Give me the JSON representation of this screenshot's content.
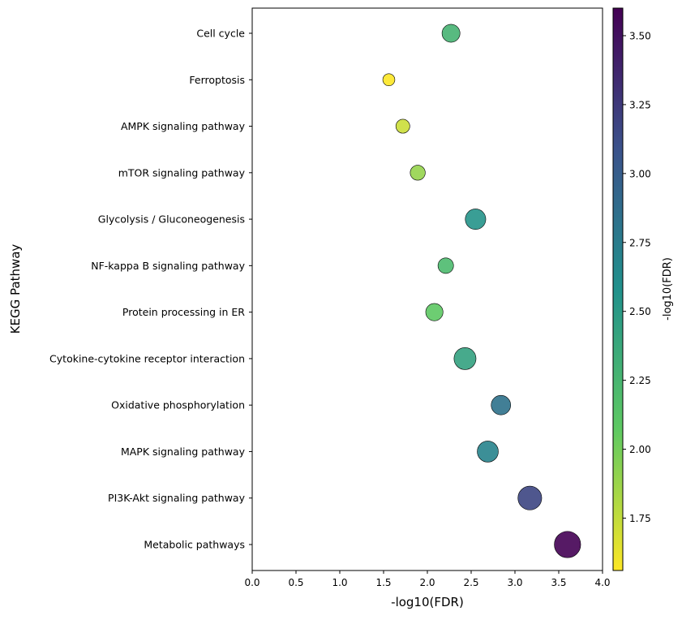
{
  "chart_data": {
    "type": "scatter",
    "title": "",
    "xlabel": "-log10(FDR)",
    "ylabel": "KEGG Pathway",
    "xlim": [
      0,
      4.0
    ],
    "xticks": [
      "0.0",
      "0.5",
      "1.0",
      "1.5",
      "2.0",
      "2.5",
      "3.0",
      "3.5",
      "4.0"
    ],
    "grid": false,
    "colormap": "viridis_r",
    "colorbar": {
      "label": "-log10(FDR)",
      "range": [
        1.56,
        3.6
      ],
      "ticks": [
        "1.75",
        "2.00",
        "2.25",
        "2.50",
        "2.75",
        "3.00",
        "3.25",
        "3.50"
      ]
    },
    "categories": [
      "Cell cycle",
      "Ferroptosis",
      "AMPK signaling pathway",
      "mTOR signaling pathway",
      "Glycolysis / Gluconeogenesis",
      "NF-kappa B signaling pathway",
      "Protein processing in ER",
      "Cytokine-cytokine receptor interaction",
      "Oxidative phosphorylation",
      "MAPK signaling pathway",
      "PI3K-Akt signaling pathway",
      "Metabolic pathways"
    ],
    "x": [
      2.27,
      1.56,
      1.72,
      1.89,
      2.55,
      2.21,
      2.08,
      2.43,
      2.84,
      2.69,
      3.17,
      3.6
    ],
    "marker_size": [
      200,
      90,
      120,
      140,
      260,
      150,
      185,
      300,
      235,
      275,
      350,
      430
    ]
  }
}
